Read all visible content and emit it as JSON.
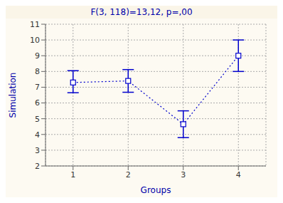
{
  "chart_data": {
    "type": "line",
    "title": "F(3, 118)=13,12, p=,00",
    "xlabel": "Groups",
    "ylabel": "Simulation",
    "x": [
      1,
      2,
      3,
      4
    ],
    "values": [
      7.3,
      7.4,
      4.65,
      9.0
    ],
    "error_upper": [
      0.75,
      0.72,
      0.85,
      1.0
    ],
    "error_lower": [
      0.65,
      0.72,
      0.85,
      1.0
    ],
    "xlim": [
      0.5,
      4.5
    ],
    "xticks": [
      1,
      2,
      3,
      4
    ],
    "ylim": [
      2,
      11
    ],
    "yticks": [
      2,
      3,
      4,
      5,
      6,
      7,
      8,
      9,
      10,
      11
    ],
    "color": "#0000CD",
    "line_style": "dotted",
    "marker": "square",
    "grid": true
  }
}
